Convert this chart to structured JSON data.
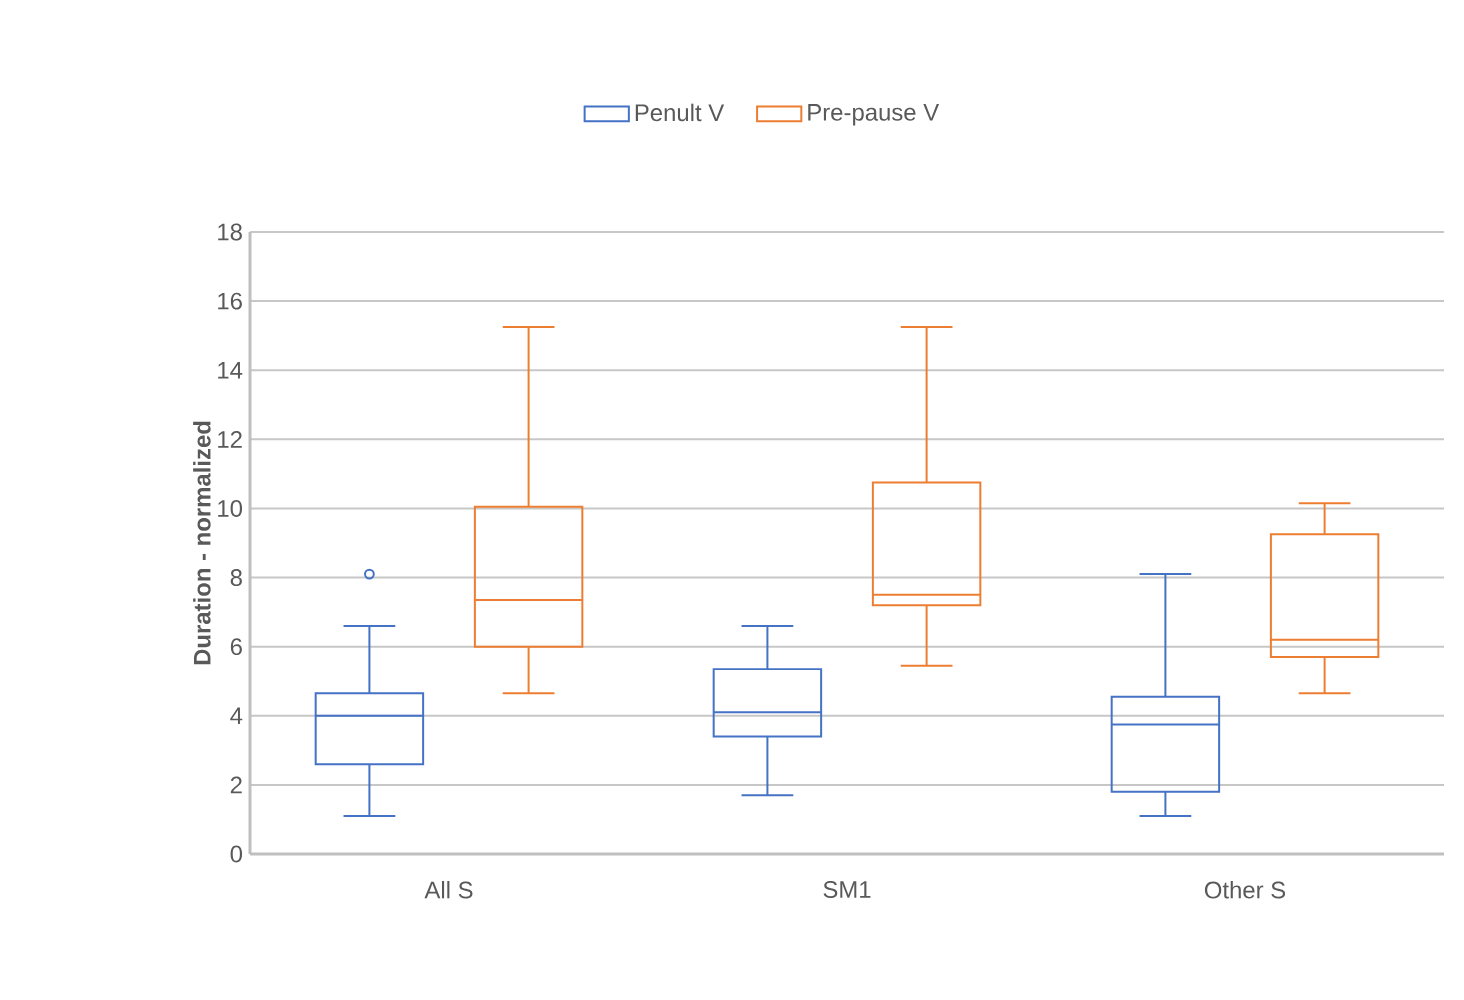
{
  "chart_data": {
    "type": "box",
    "ylabel": "Duration - normalized",
    "categories": [
      "All S",
      "SM1",
      "Other S"
    ],
    "series": [
      {
        "name": "Penult V",
        "color": "#4472c4",
        "boxes": [
          {
            "low": 1.1,
            "q1": 2.6,
            "median": 4.0,
            "q3": 4.65,
            "high": 6.6,
            "outliers": [
              8.1
            ]
          },
          {
            "low": 1.7,
            "q1": 3.4,
            "median": 4.1,
            "q3": 5.35,
            "high": 6.6
          },
          {
            "low": 1.1,
            "q1": 1.8,
            "median": 3.75,
            "q3": 4.55,
            "high": 8.1
          }
        ]
      },
      {
        "name": "Pre-pause V",
        "color": "#ed7d31",
        "boxes": [
          {
            "low": 4.65,
            "q1": 6.0,
            "median": 7.35,
            "q3": 10.05,
            "high": 15.25
          },
          {
            "low": 5.45,
            "q1": 7.2,
            "median": 7.5,
            "q3": 10.75,
            "high": 15.25
          },
          {
            "low": 4.65,
            "q1": 5.7,
            "median": 6.2,
            "q3": 9.25,
            "high": 10.15
          }
        ]
      }
    ],
    "ylim": [
      0,
      18
    ],
    "yticks": [
      0,
      2,
      4,
      6,
      8,
      10,
      12,
      14,
      16,
      18
    ],
    "grid": "y",
    "legend": "top"
  }
}
